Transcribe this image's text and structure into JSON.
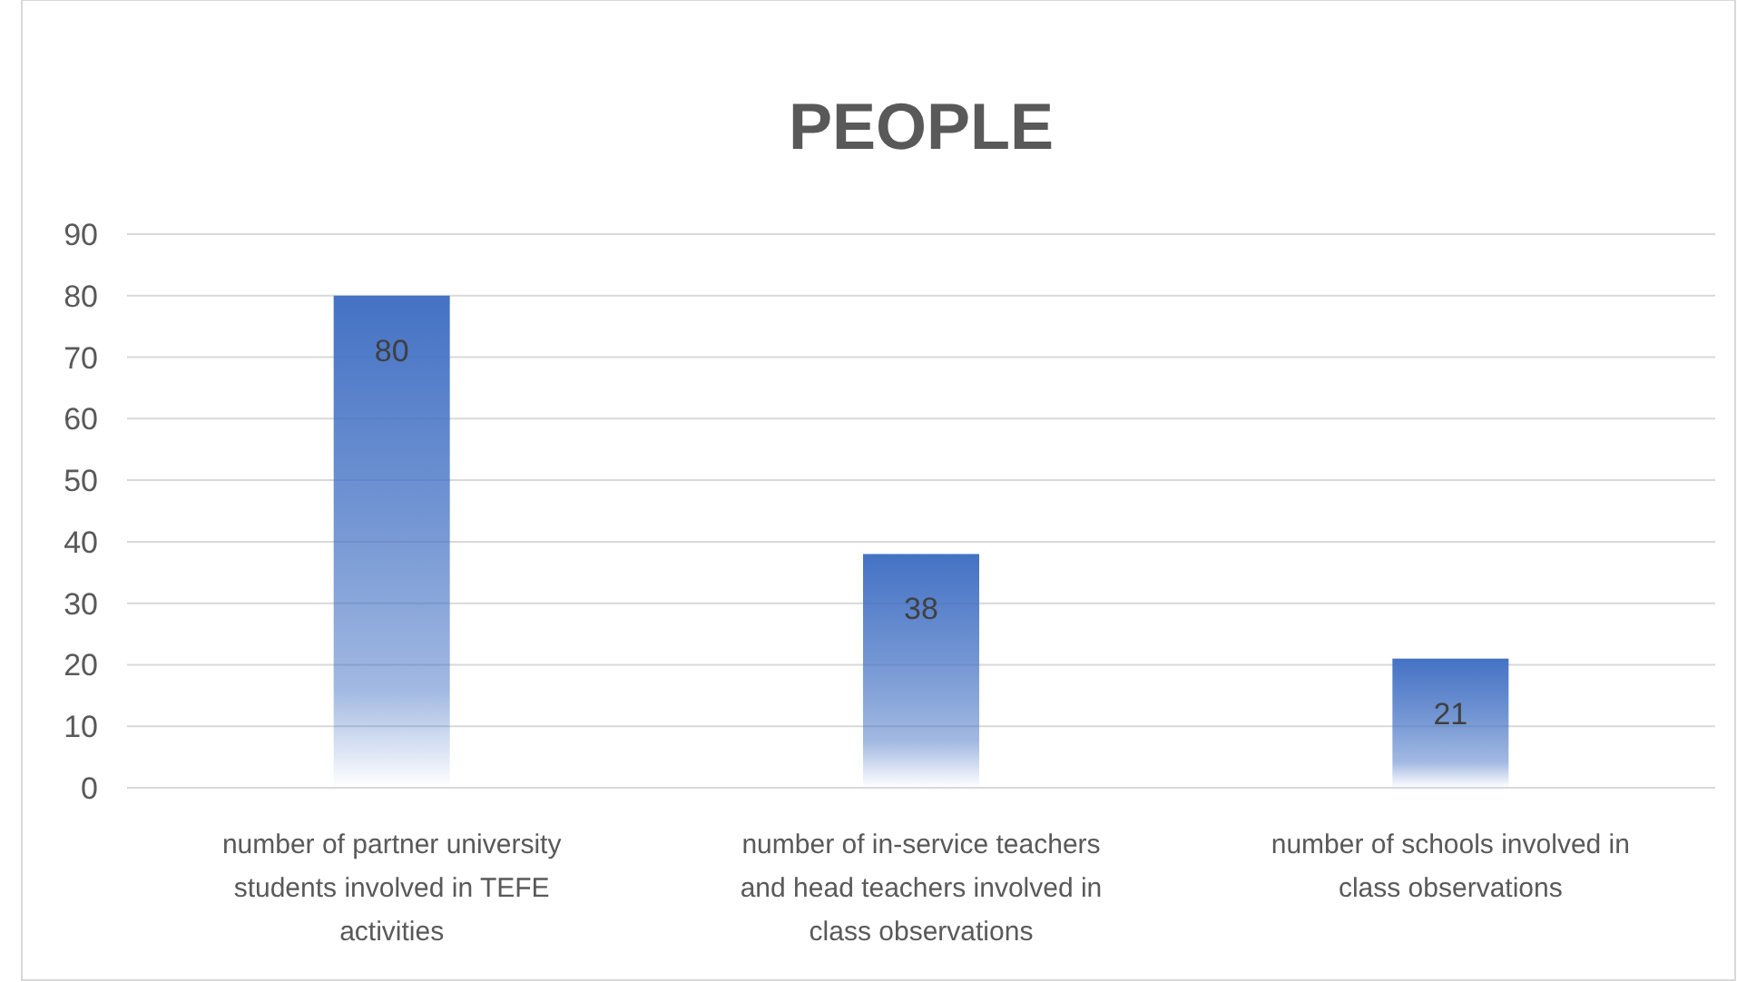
{
  "chart_data": {
    "type": "bar",
    "title": "PEOPLE",
    "categories": [
      "number of partner university students involved in TEFE activities",
      "number of in-service teachers and head teachers involved in class observations",
      "number of schools involved in class observations"
    ],
    "values": [
      80,
      38,
      21
    ],
    "color": "#4472c4",
    "ylim": [
      0,
      90
    ],
    "yticks": [
      0,
      10,
      20,
      30,
      40,
      50,
      60,
      70,
      80,
      90
    ],
    "grid": "y",
    "data_labels": true
  }
}
